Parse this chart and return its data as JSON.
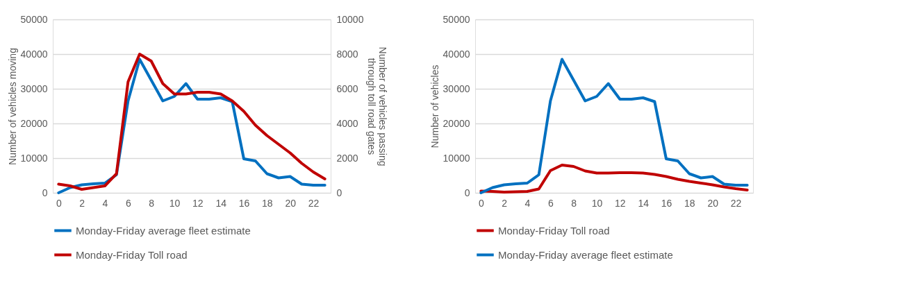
{
  "chart_data": [
    {
      "type": "line",
      "categories": [
        "0",
        null,
        "2",
        null,
        "4",
        null,
        "6",
        null,
        "8",
        null,
        "10",
        null,
        "12",
        null,
        "14",
        null,
        "16",
        null,
        "18",
        null,
        "20",
        null,
        "22",
        null
      ],
      "ylabel": "Number of vehicles moving",
      "y2label": "Number of vehicles passing through toll road gates",
      "ylim": [
        0,
        50000
      ],
      "yticks": [
        0,
        10000,
        20000,
        30000,
        40000,
        50000
      ],
      "y2lim": [
        0,
        10000
      ],
      "y2ticks": [
        0,
        2000,
        4000,
        6000,
        8000,
        10000
      ],
      "grid": "y",
      "legend": "bottom",
      "line_style": "solid",
      "series": [
        {
          "name": "Monday-Friday average fleet estimate",
          "color": "#0070c0",
          "values": [
            0,
            1500,
            2300,
            2600,
            2800,
            5200,
            26500,
            38500,
            32500,
            26500,
            27800,
            31500,
            27000,
            27000,
            27400,
            26300,
            9800,
            9200,
            5500,
            4300,
            4700,
            2500,
            2200,
            2200
          ]
        },
        {
          "name": "Monday-Friday Toll road",
          "color": "#c00000",
          "axis": "y2",
          "values": [
            500,
            400,
            200,
            300,
            400,
            1100,
            6400,
            8000,
            7600,
            6300,
            5700,
            5700,
            5800,
            5800,
            5700,
            5300,
            4700,
            3900,
            3300,
            2800,
            2300,
            1700,
            1200,
            800
          ]
        }
      ]
    },
    {
      "type": "line",
      "categories": [
        "0",
        null,
        "2",
        null,
        "4",
        null,
        "6",
        null,
        "8",
        null,
        "10",
        null,
        "12",
        null,
        "14",
        null,
        "16",
        null,
        "18",
        null,
        "20",
        null,
        "22",
        null
      ],
      "ylabel": "Number of vehicles",
      "ylim": [
        0,
        50000
      ],
      "yticks": [
        0,
        10000,
        20000,
        30000,
        40000,
        50000
      ],
      "grid": "y",
      "legend": "bottom",
      "line_style": "solid",
      "series": [
        {
          "name": "Monday-Friday Toll road",
          "color": "#c00000",
          "values": [
            500,
            400,
            200,
            300,
            400,
            1100,
            6400,
            8000,
            7600,
            6300,
            5700,
            5700,
            5800,
            5800,
            5700,
            5300,
            4700,
            3900,
            3300,
            2800,
            2300,
            1700,
            1200,
            800
          ]
        },
        {
          "name": "Monday-Friday average fleet estimate",
          "color": "#0070c0",
          "values": [
            0,
            1500,
            2300,
            2600,
            2800,
            5200,
            26500,
            38500,
            32500,
            26500,
            27800,
            31500,
            27000,
            27000,
            27400,
            26300,
            9800,
            9200,
            5500,
            4300,
            4700,
            2500,
            2200,
            2200
          ]
        }
      ]
    }
  ]
}
